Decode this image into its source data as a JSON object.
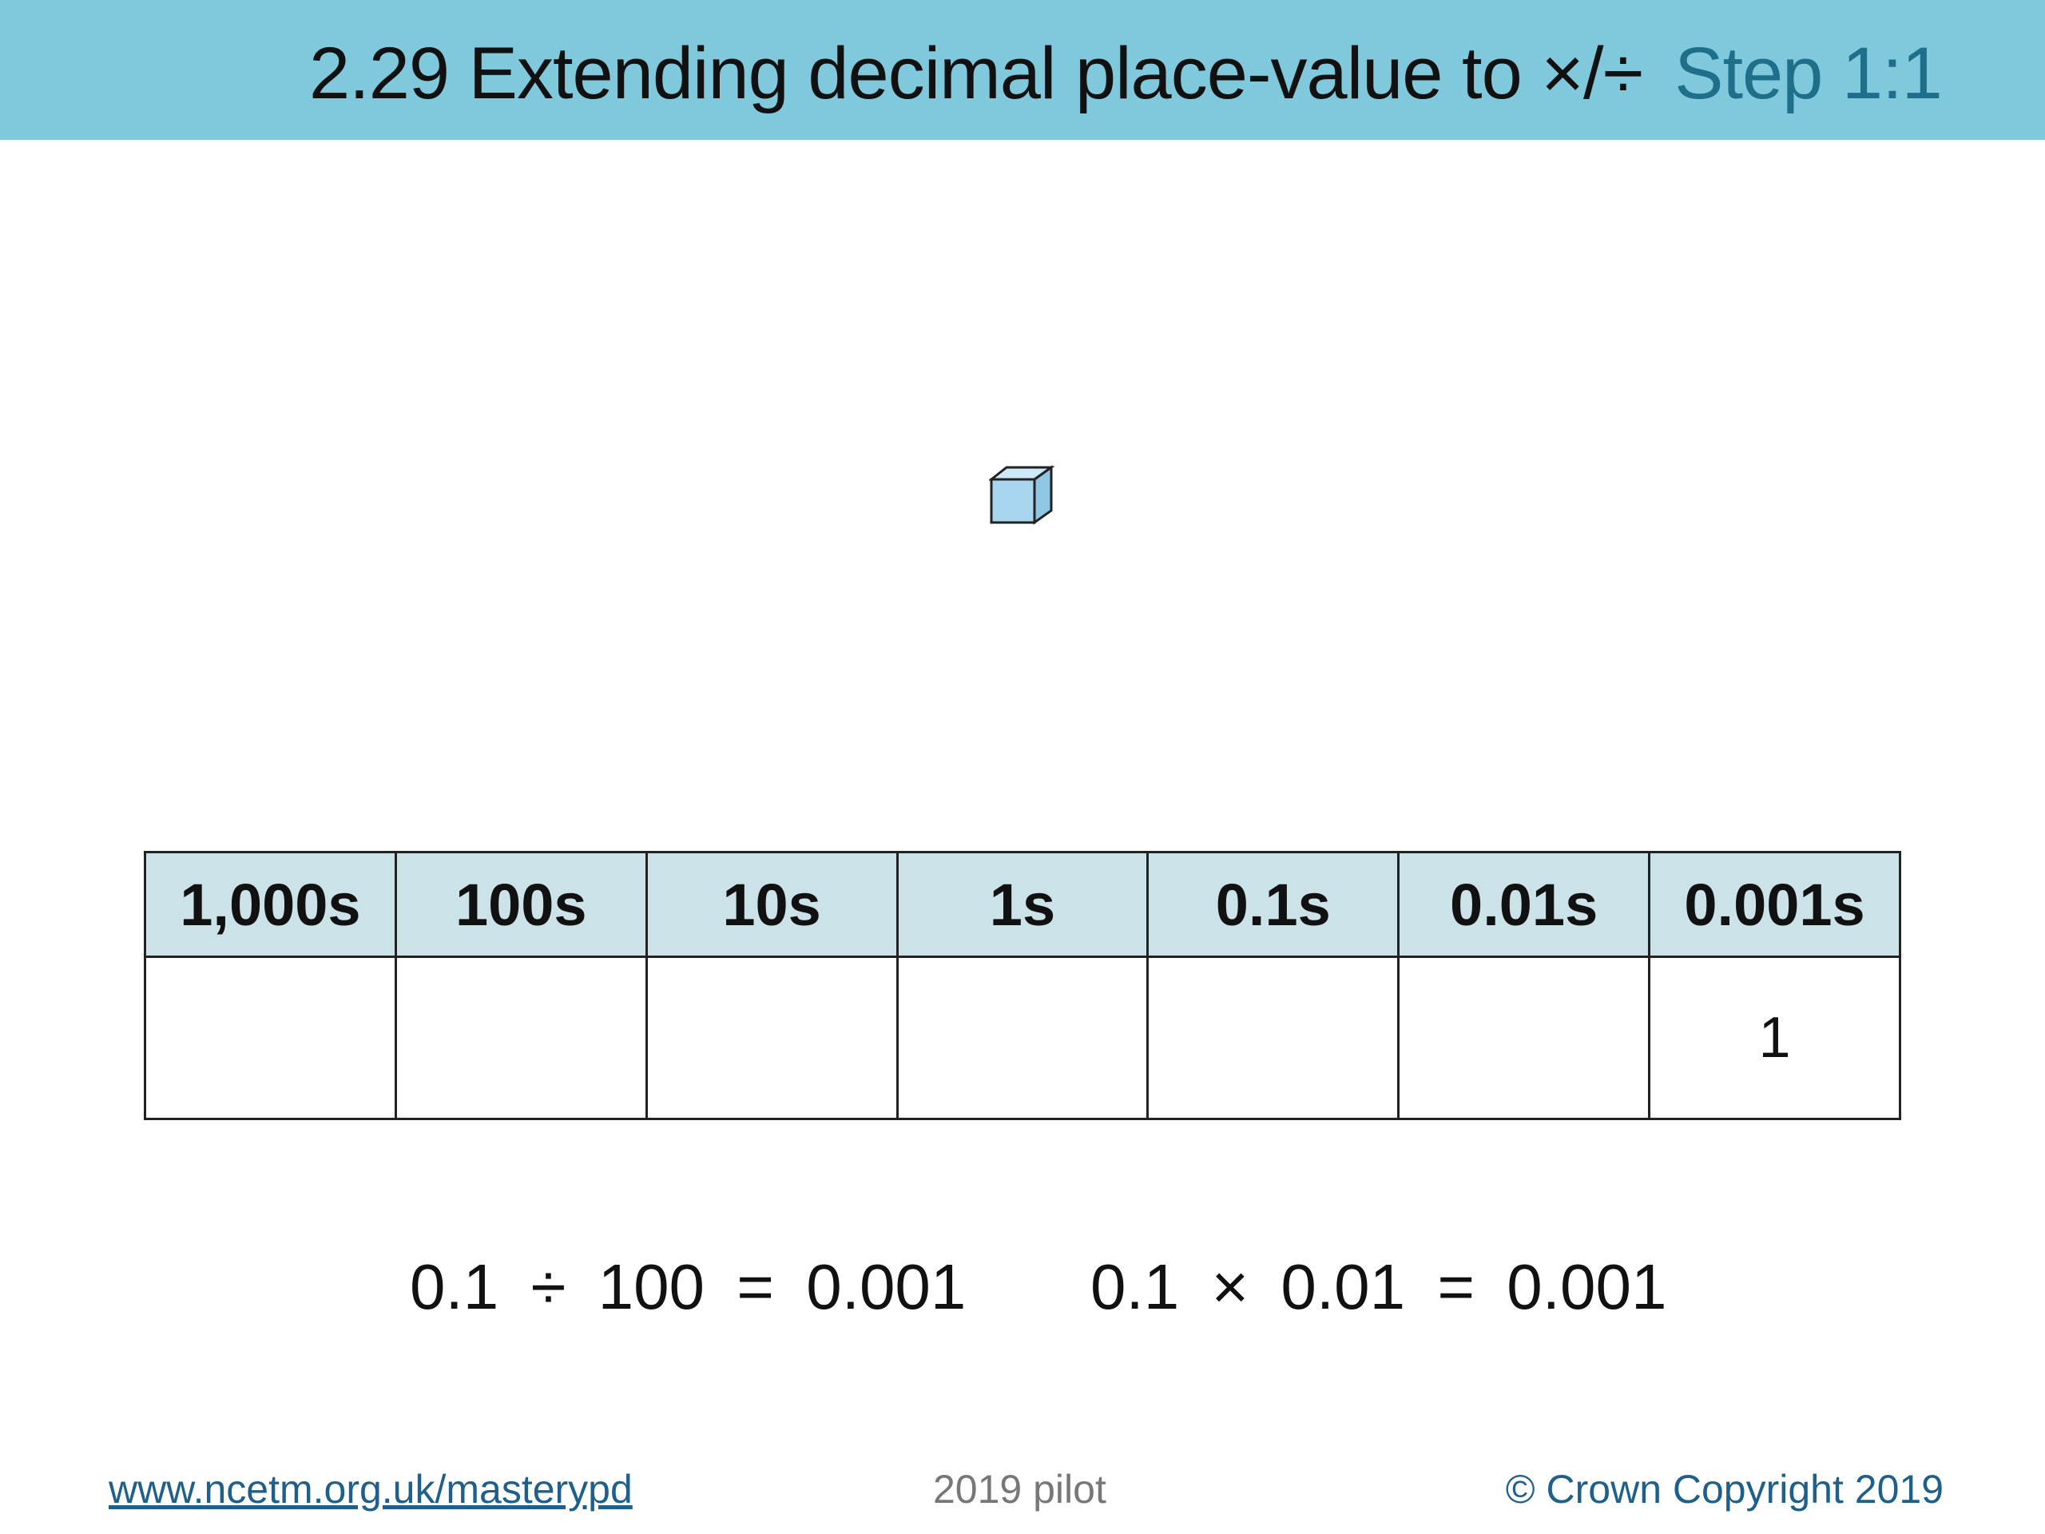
{
  "header": {
    "title": "2.29 Extending decimal place-value to ×/÷",
    "step": "Step 1:1"
  },
  "table": {
    "headers": [
      "1,000s",
      "100s",
      "10s",
      "1s",
      "0.1s",
      "0.01s",
      "0.001s"
    ],
    "rows": [
      [
        null,
        null,
        null,
        null,
        null,
        null,
        "1"
      ]
    ]
  },
  "equations": [
    "0.1 ÷ 100 = 0.001",
    "0.1 × 0.01 = 0.001"
  ],
  "footer": {
    "link": "www.ncetm.org.uk/masterypd",
    "center": "2019 pilot",
    "copyright": "© Crown Copyright 2019"
  }
}
